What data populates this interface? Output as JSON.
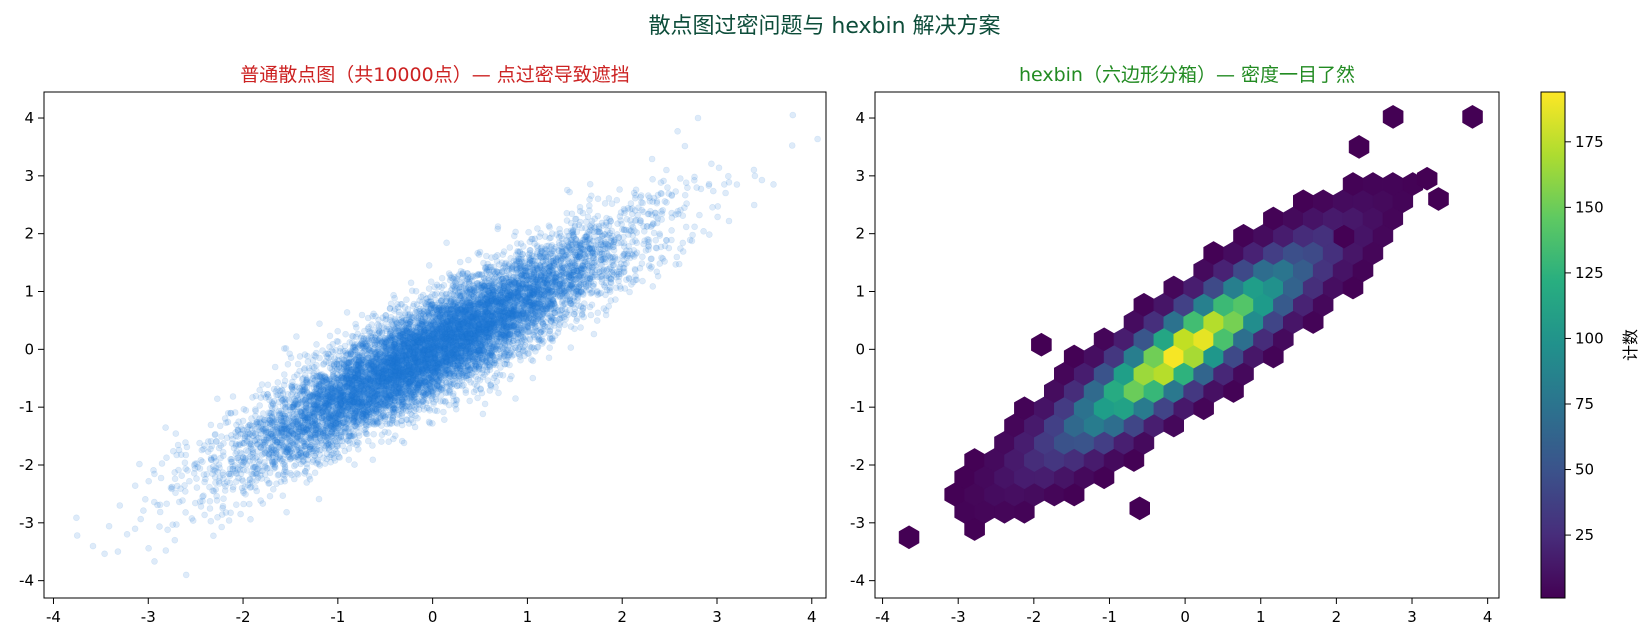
{
  "figure": {
    "suptitle": "散点图过密问题与 hexbin 解决方案",
    "suptitle_color": "#0d4d3a"
  },
  "chart_data": [
    {
      "type": "scatter",
      "title": "普通散点图（共10000点）— 点过密导致遮挡",
      "title_color": "#cc2222",
      "xlabel": "",
      "ylabel": "",
      "xlim": [
        -4.1,
        4.15
      ],
      "ylim": [
        -4.3,
        4.45
      ],
      "x_ticks": [
        -4,
        -3,
        -2,
        -1,
        0,
        1,
        2,
        3,
        4
      ],
      "y_ticks": [
        -4,
        -3,
        -2,
        -1,
        0,
        1,
        2,
        3,
        4
      ],
      "point_count": 10000,
      "point_color": "#1f77d4",
      "point_alpha": 0.15,
      "distribution": {
        "kind": "bivariate-normal",
        "mean": [
          0,
          0
        ],
        "std": [
          1,
          1
        ],
        "correlation": 0.9
      },
      "outliers": [
        {
          "x": -3.75,
          "y": -3.22
        },
        {
          "x": 3.8,
          "y": 4.05
        },
        {
          "x": 2.8,
          "y": 4.0
        },
        {
          "x": -2.6,
          "y": -3.9
        },
        {
          "x": 3.4,
          "y": 3.0
        },
        {
          "x": -3.3,
          "y": -2.7
        }
      ],
      "grid": false
    },
    {
      "type": "heatmap",
      "subtype": "hexbin",
      "title": "hexbin（六边形分箱）— 密度一目了然",
      "title_color": "#228b22",
      "xlabel": "",
      "ylabel": "",
      "xlim": [
        -4.1,
        4.15
      ],
      "ylim": [
        -4.3,
        4.45
      ],
      "x_ticks": [
        -4,
        -3,
        -2,
        -1,
        0,
        1,
        2,
        3,
        4
      ],
      "y_ticks": [
        -4,
        -3,
        -2,
        -1,
        0,
        1,
        2,
        3,
        4
      ],
      "colormap": "viridis",
      "colorbar": {
        "label": "计数",
        "min": 1,
        "max": 194,
        "ticks": [
          25,
          50,
          75,
          100,
          125,
          150,
          175
        ]
      },
      "count_model": {
        "peak_count": 194,
        "correlation": 0.9,
        "std": [
          1,
          1
        ]
      },
      "sparse_bins": [
        {
          "x": -3.65,
          "y": -3.25
        },
        {
          "x": 2.75,
          "y": 4.02
        },
        {
          "x": 3.8,
          "y": 4.02
        },
        {
          "x": -1.9,
          "y": 0.08
        },
        {
          "x": -0.6,
          "y": -2.75
        },
        {
          "x": 2.1,
          "y": 1.95
        },
        {
          "x": 3.2,
          "y": 2.95
        },
        {
          "x": 3.35,
          "y": 2.6
        },
        {
          "x": 2.3,
          "y": 3.5
        }
      ],
      "grid": false
    }
  ]
}
